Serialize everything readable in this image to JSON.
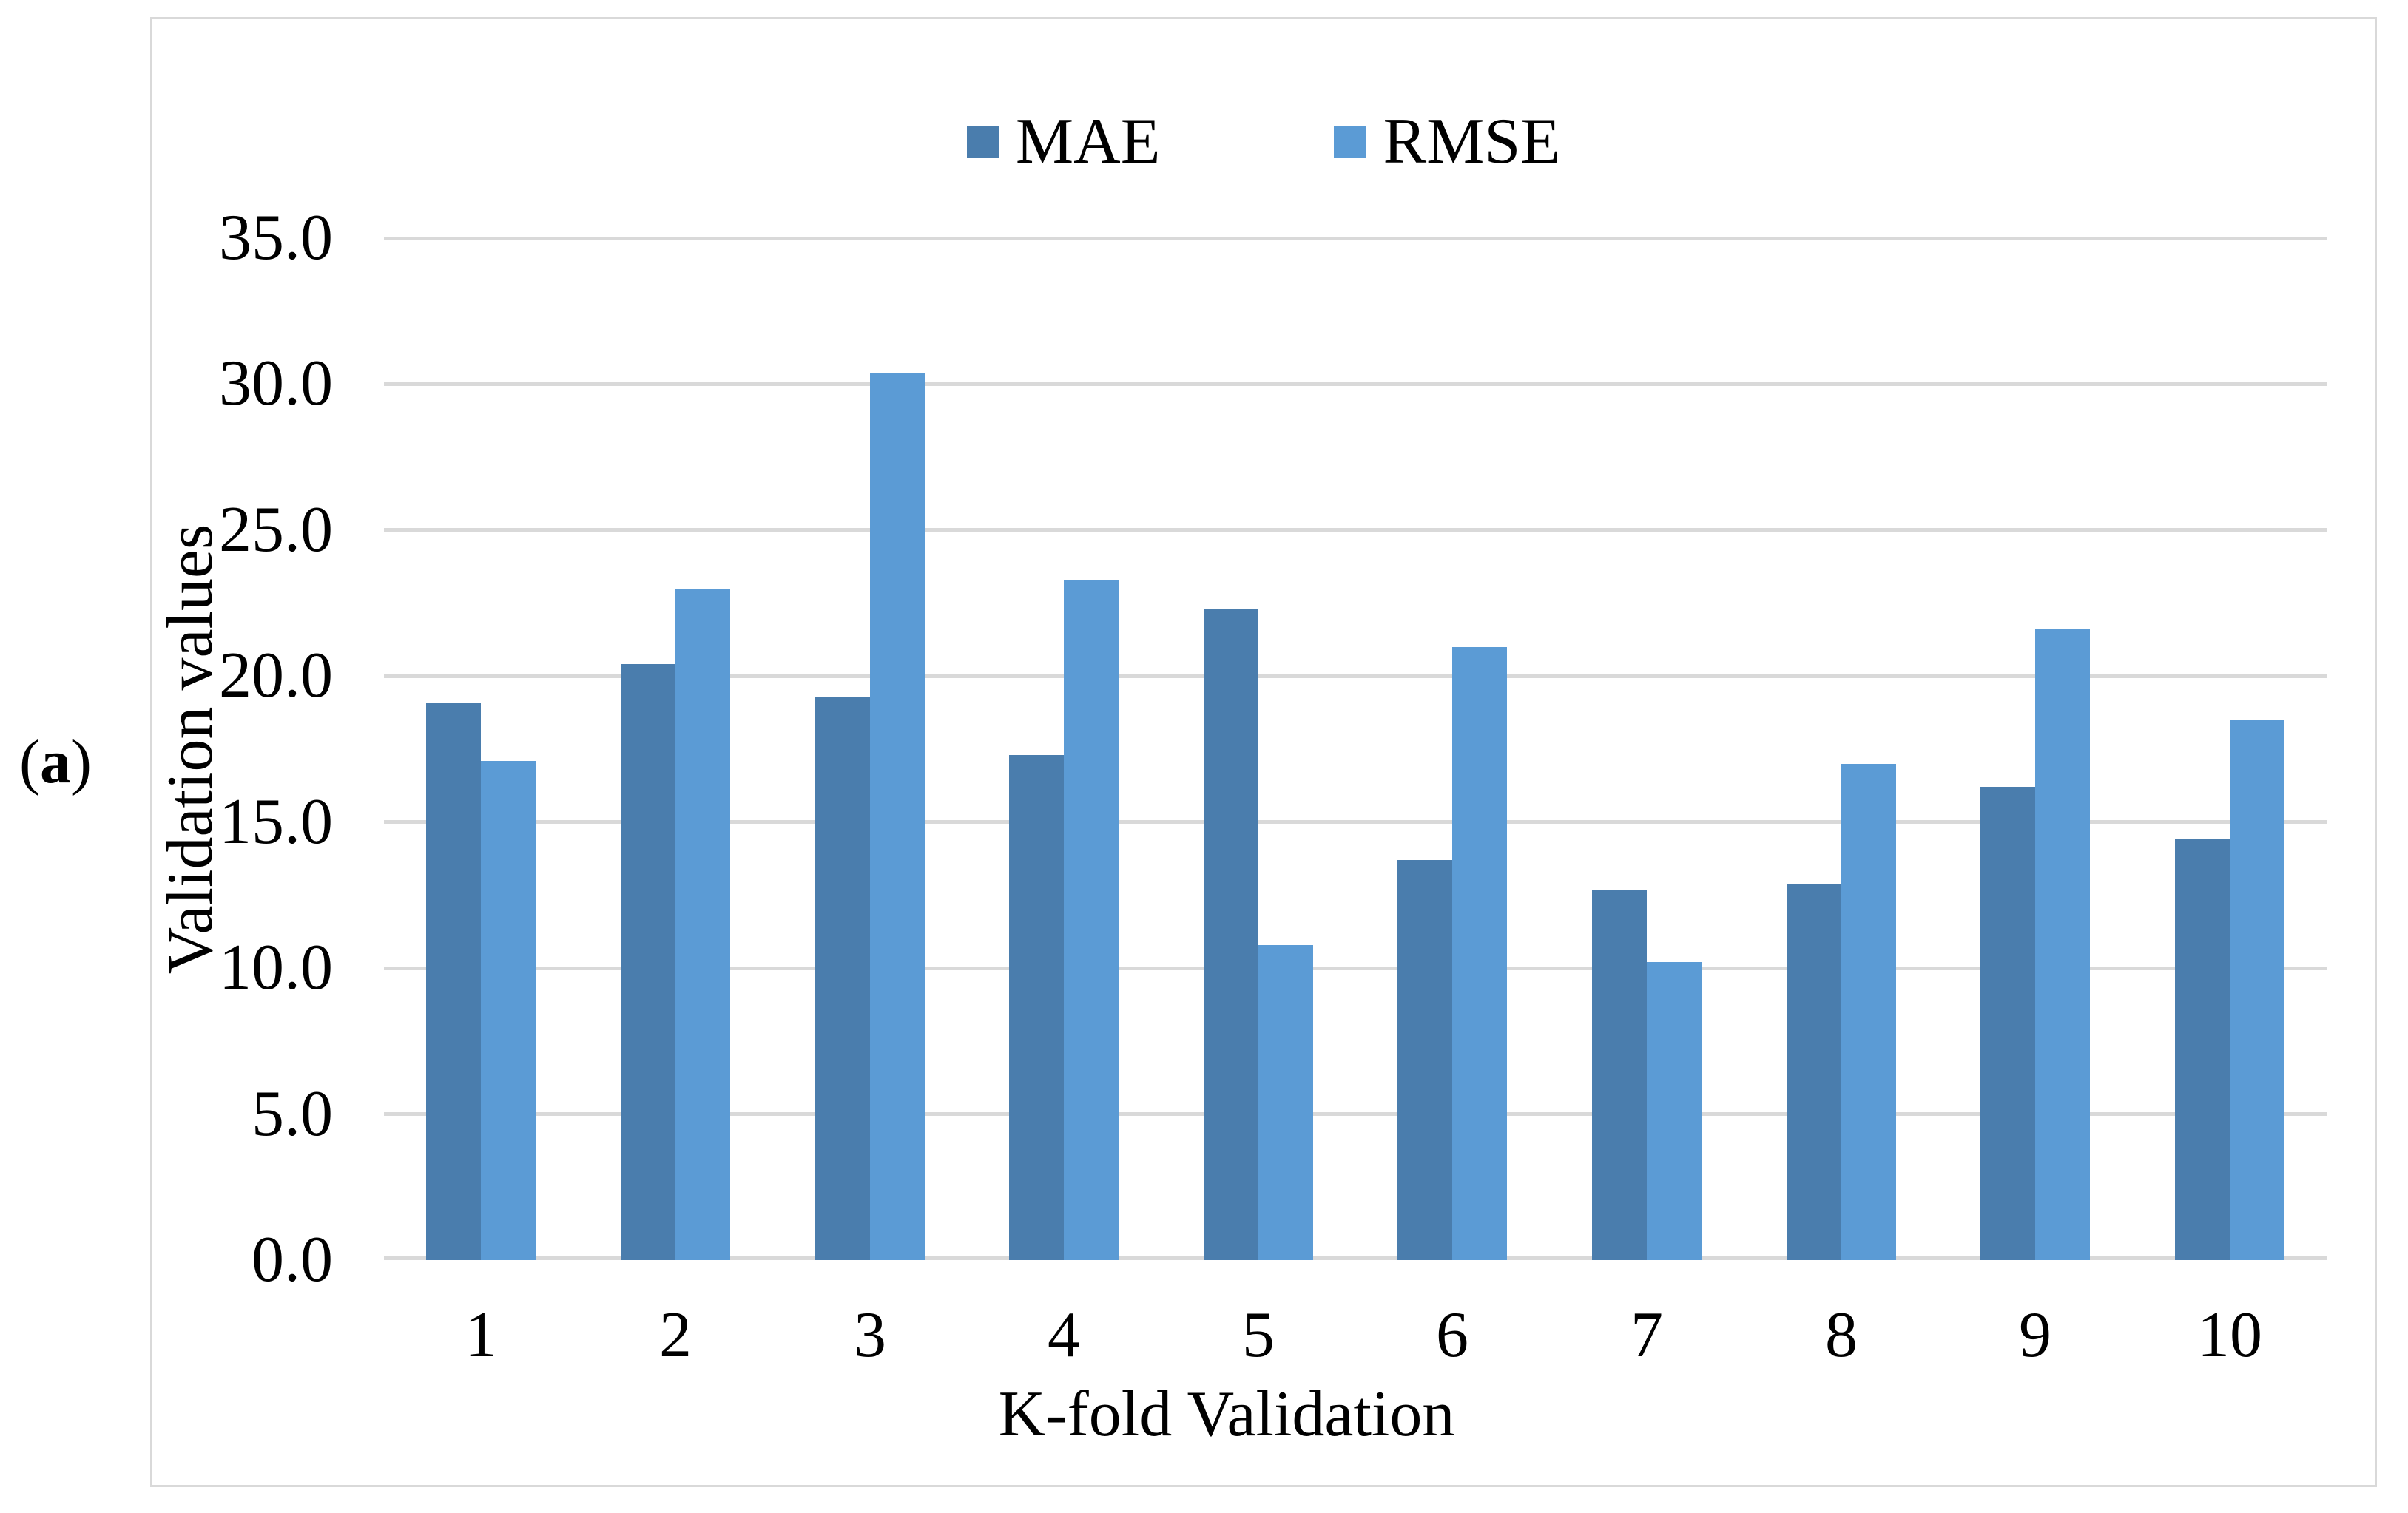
{
  "panel": {
    "open_paren": "(",
    "letter": "a",
    "close_paren": ")"
  },
  "colors": {
    "mae": "#4A7DAD",
    "rmse": "#5B9BD5",
    "gridline": "#D9D9D9",
    "figure_border": "#D9D9D9",
    "text": "#000000"
  },
  "chart_data": {
    "type": "bar",
    "title": "",
    "xlabel": "K-fold Validation",
    "ylabel": "Validation values",
    "categories": [
      "1",
      "2",
      "3",
      "4",
      "5",
      "6",
      "7",
      "8",
      "9",
      "10"
    ],
    "series": [
      {
        "name": "MAE",
        "color": "#4A7DAD",
        "values": [
          19.1,
          20.4,
          19.3,
          17.3,
          22.3,
          13.7,
          12.7,
          12.9,
          16.2,
          14.4
        ]
      },
      {
        "name": "RMSE",
        "color": "#5B9BD5",
        "values": [
          17.1,
          23.0,
          30.4,
          23.3,
          10.8,
          21.0,
          10.2,
          17.0,
          21.6,
          18.5
        ]
      }
    ],
    "ylim": [
      0,
      35
    ],
    "ytick_step": 5,
    "ytick_labels": [
      "0.0",
      "5.0",
      "10.0",
      "15.0",
      "20.0",
      "25.0",
      "30.0",
      "35.0"
    ],
    "grid": true,
    "legend_position": "top-center"
  }
}
